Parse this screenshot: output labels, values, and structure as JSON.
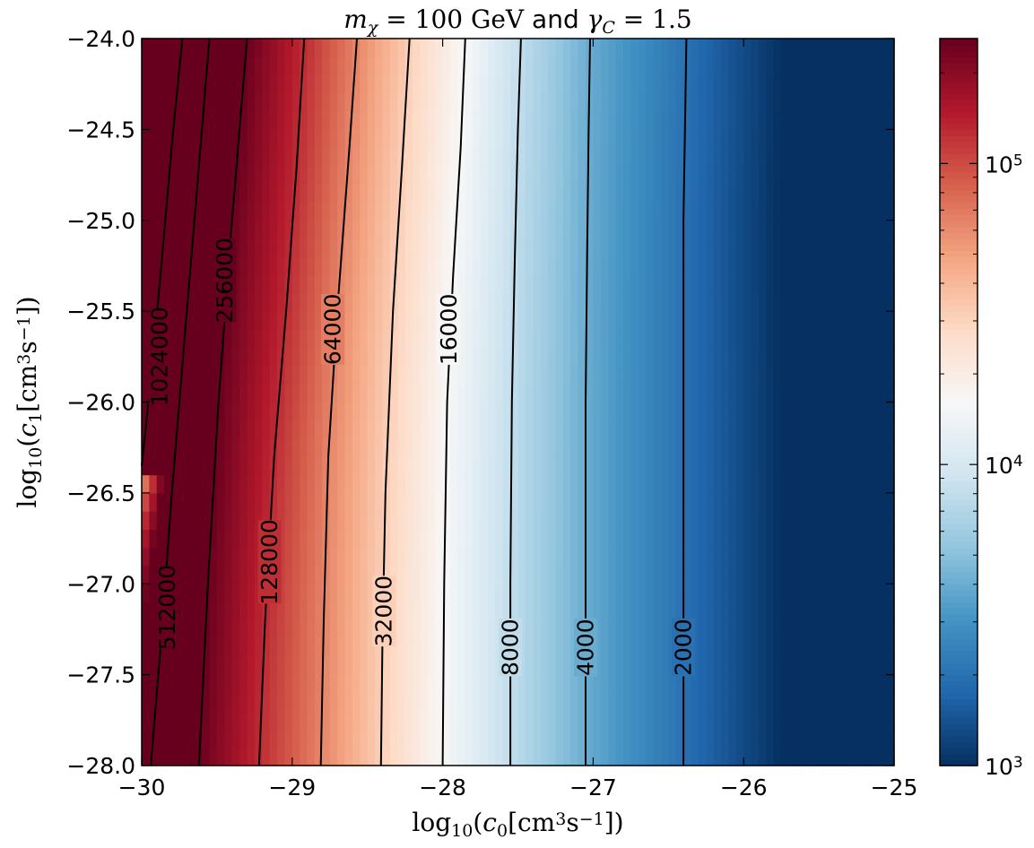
{
  "chart_data": {
    "type": "heatmap",
    "title": "$m_\\chi = 100\\,\\mathrm{GeV}$ and $\\gamma_C = 1.5$",
    "title_parts": {
      "math_left": "m",
      "math_left_sub": "χ",
      "math_left_rest": " = 100 GeV",
      "joiner": " and ",
      "math_right": "γ",
      "math_right_sub": "C",
      "math_right_rest": " = 1.5"
    },
    "xlabel": "log10(c0[cm3s−1])",
    "ylabel": "log10(c1[cm3s−1])",
    "xlabel_parts": {
      "a": "log",
      "a_sub": "10",
      "b": "(c",
      "b_sub": "0",
      "c": "[cm",
      "c_sup": "3",
      "d": "s",
      "d_sup": "−1",
      "e": "])"
    },
    "ylabel_parts": {
      "a": "log",
      "a_sub": "10",
      "b": "(c",
      "b_sub": "1",
      "c": "[cm",
      "c_sup": "3",
      "d": "s",
      "d_sup": "−1",
      "e": "])"
    },
    "xlim": [
      -30,
      -25
    ],
    "ylim": [
      -28,
      -24
    ],
    "xticks": [
      -30,
      -29,
      -28,
      -27,
      -26,
      -25
    ],
    "xtick_labels": [
      "−30",
      "−29",
      "−28",
      "−27",
      "−26",
      "−25"
    ],
    "yticks": [
      -28,
      -27.5,
      -27,
      -26.5,
      -26,
      -25.5,
      -25,
      -24.5,
      -24
    ],
    "ytick_labels": [
      "−28.0",
      "−27.5",
      "−27.0",
      "−26.5",
      "−26.0",
      "−25.5",
      "−25.0",
      "−24.5",
      "−24.0"
    ],
    "colormap": "RdBu_r",
    "colormap_stops": [
      "#053061",
      "#2166ac",
      "#4393c3",
      "#92c5de",
      "#d1e5f0",
      "#f7f7f7",
      "#fddbc7",
      "#f4a582",
      "#d6604d",
      "#b2182b",
      "#67001f"
    ],
    "color_scale": "log",
    "clim": [
      1000,
      260000
    ],
    "colorbar_ticks": [
      1000,
      10000,
      100000
    ],
    "colorbar_tick_labels": [
      {
        "base": "10",
        "exp": "3"
      },
      {
        "base": "10",
        "exp": "4"
      },
      {
        "base": "10",
        "exp": "5"
      }
    ],
    "contours": [
      {
        "level": 1024000,
        "label": "1024000",
        "points": [
          [
            -30.0,
            -26.35
          ],
          [
            -29.93,
            -25.8
          ],
          [
            -29.87,
            -25.25
          ],
          [
            -29.79,
            -24.5
          ],
          [
            -29.73,
            -24.0
          ]
        ]
      },
      {
        "level": 512000,
        "label": "512000",
        "points": [
          [
            -29.94,
            -28.0
          ],
          [
            -29.87,
            -27.3
          ],
          [
            -29.8,
            -26.5
          ],
          [
            -29.7,
            -25.5
          ],
          [
            -29.62,
            -24.7
          ],
          [
            -29.55,
            -24.0
          ]
        ]
      },
      {
        "level": 256000,
        "label": "256000",
        "points": [
          [
            -29.62,
            -28.0
          ],
          [
            -29.56,
            -27.0
          ],
          [
            -29.49,
            -26.0
          ],
          [
            -29.4,
            -25.0
          ],
          [
            -29.33,
            -24.3
          ],
          [
            -29.3,
            -24.0
          ]
        ]
      },
      {
        "level": 128000,
        "label": "128000",
        "points": [
          [
            -29.22,
            -28.0
          ],
          [
            -29.18,
            -27.2
          ],
          [
            -29.12,
            -26.3
          ],
          [
            -29.04,
            -25.5
          ],
          [
            -28.97,
            -24.7
          ],
          [
            -28.92,
            -24.0
          ]
        ]
      },
      {
        "level": 64000,
        "label": "64000",
        "points": [
          [
            -28.81,
            -28.0
          ],
          [
            -28.79,
            -27.2
          ],
          [
            -28.76,
            -26.3
          ],
          [
            -28.7,
            -25.5
          ],
          [
            -28.62,
            -24.6
          ],
          [
            -28.57,
            -24.0
          ]
        ]
      },
      {
        "level": 32000,
        "label": "32000",
        "points": [
          [
            -28.41,
            -28.0
          ],
          [
            -28.4,
            -27.3
          ],
          [
            -28.38,
            -26.5
          ],
          [
            -28.33,
            -25.5
          ],
          [
            -28.27,
            -24.7
          ],
          [
            -28.22,
            -24.0
          ]
        ]
      },
      {
        "level": 16000,
        "label": "16000",
        "points": [
          [
            -28.0,
            -28.0
          ],
          [
            -27.99,
            -27.0
          ],
          [
            -27.97,
            -26.0
          ],
          [
            -27.93,
            -25.3
          ],
          [
            -27.88,
            -24.6
          ],
          [
            -27.85,
            -24.0
          ]
        ]
      },
      {
        "level": 8000,
        "label": "8000",
        "points": [
          [
            -27.55,
            -28.0
          ],
          [
            -27.55,
            -27.0
          ],
          [
            -27.54,
            -26.0
          ],
          [
            -27.52,
            -25.2
          ],
          [
            -27.5,
            -24.5
          ],
          [
            -27.48,
            -24.0
          ]
        ]
      },
      {
        "level": 4000,
        "label": "4000",
        "points": [
          [
            -27.05,
            -28.0
          ],
          [
            -27.05,
            -27.0
          ],
          [
            -27.05,
            -26.0
          ],
          [
            -27.04,
            -25.2
          ],
          [
            -27.03,
            -24.5
          ],
          [
            -27.02,
            -24.0
          ]
        ]
      },
      {
        "level": 2000,
        "label": "2000",
        "points": [
          [
            -26.4,
            -28.0
          ],
          [
            -26.4,
            -27.0
          ],
          [
            -26.4,
            -26.0
          ],
          [
            -26.4,
            -25.0
          ],
          [
            -26.39,
            -24.5
          ],
          [
            -26.38,
            -24.0
          ]
        ]
      }
    ],
    "contour_label_positions": [
      {
        "label": "1024000",
        "x": -29.88,
        "y": -25.75
      },
      {
        "label": "512000",
        "x": -29.83,
        "y": -27.13
      },
      {
        "label": "256000",
        "x": -29.45,
        "y": -25.33
      },
      {
        "label": "128000",
        "x": -29.15,
        "y": -26.88
      },
      {
        "label": "64000",
        "x": -28.73,
        "y": -25.6
      },
      {
        "label": "32000",
        "x": -28.39,
        "y": -27.15
      },
      {
        "label": "16000",
        "x": -27.96,
        "y": -25.6
      },
      {
        "label": "8000",
        "x": -27.55,
        "y": -27.35
      },
      {
        "label": "4000",
        "x": -27.05,
        "y": -27.35
      },
      {
        "label": "2000",
        "x": -26.4,
        "y": -27.35
      }
    ],
    "grid": false,
    "legend": "none"
  }
}
